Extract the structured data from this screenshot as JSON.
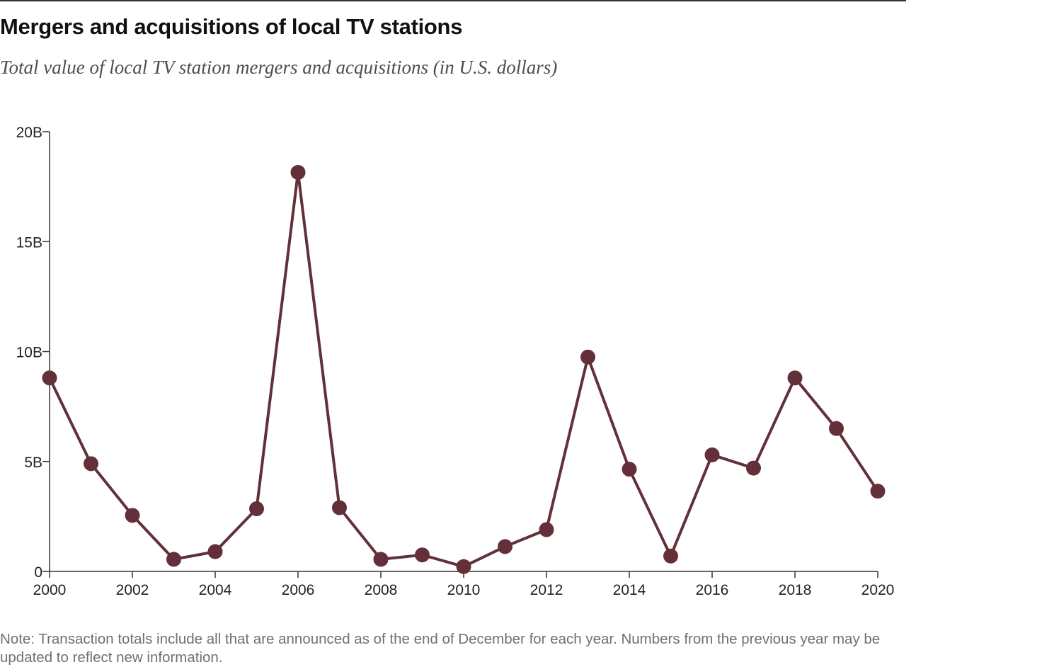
{
  "header": {
    "title": "Mergers and acquisitions of local TV stations",
    "subtitle": "Total value of local TV station mergers and acquisitions (in U.S. dollars)"
  },
  "note": "Note: Transaction totals include all that are announced as of the end of December for each year. Numbers from the previous year may be updated to reflect new information.",
  "colors": {
    "series": "#63303a",
    "axis": "#333333"
  },
  "chart_data": {
    "type": "line",
    "title": "Mergers and acquisitions of local TV stations",
    "subtitle": "Total value of local TV station mergers and acquisitions (in U.S. dollars)",
    "xlabel": "",
    "ylabel": "",
    "x": [
      2000,
      2001,
      2002,
      2003,
      2004,
      2005,
      2006,
      2007,
      2008,
      2009,
      2010,
      2011,
      2012,
      2013,
      2014,
      2015,
      2016,
      2017,
      2018,
      2019,
      2020
    ],
    "series": [
      {
        "name": "Total value of local TV station mergers and acquisitions",
        "unit": "billion USD",
        "values": [
          8.8,
          4.9,
          2.55,
          0.55,
          0.9,
          2.85,
          18.15,
          2.9,
          0.55,
          0.75,
          0.22,
          1.13,
          1.9,
          9.75,
          4.65,
          0.7,
          5.3,
          4.7,
          8.8,
          6.5,
          3.65
        ]
      }
    ],
    "xlim": [
      2000,
      2020
    ],
    "ylim": [
      0,
      20
    ],
    "x_ticks": [
      {
        "value": 2000,
        "label": "2000"
      },
      {
        "value": 2002,
        "label": "2002"
      },
      {
        "value": 2004,
        "label": "2004"
      },
      {
        "value": 2006,
        "label": "2006"
      },
      {
        "value": 2008,
        "label": "2008"
      },
      {
        "value": 2010,
        "label": "2010"
      },
      {
        "value": 2012,
        "label": "2012"
      },
      {
        "value": 2014,
        "label": "2014"
      },
      {
        "value": 2016,
        "label": "2016"
      },
      {
        "value": 2018,
        "label": "2018"
      },
      {
        "value": 2020,
        "label": "2020"
      }
    ],
    "y_ticks": [
      {
        "value": 0,
        "label": "0"
      },
      {
        "value": 5,
        "label": "5B"
      },
      {
        "value": 10,
        "label": "10B"
      },
      {
        "value": 15,
        "label": "15B"
      },
      {
        "value": 20,
        "label": "20B"
      }
    ],
    "grid": false,
    "legend": "none"
  }
}
